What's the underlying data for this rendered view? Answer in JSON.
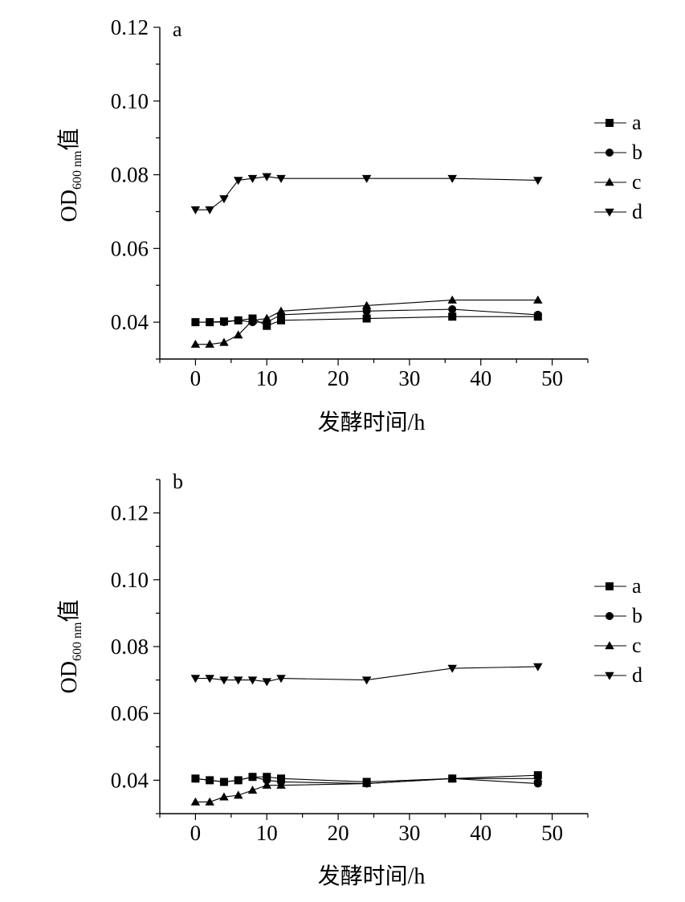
{
  "chart_data": [
    {
      "type": "line",
      "panel_label": "a",
      "xlabel": "发酵时间/h",
      "ylabel_main": "OD",
      "ylabel_sub": "600 nm",
      "ylabel_suffix": "值",
      "xlim": [
        -5,
        55
      ],
      "ylim": [
        0.03,
        0.12
      ],
      "xticks": [
        0,
        10,
        20,
        30,
        40,
        50
      ],
      "yticks": [
        0.04,
        0.06,
        0.08,
        0.1,
        0.12
      ],
      "ytick_labels": [
        "0.04",
        "0.06",
        "0.08",
        "0.10",
        "0.12"
      ],
      "legend_position": "right",
      "series": [
        {
          "name": "a",
          "marker": "square",
          "x": [
            0,
            2,
            4,
            6,
            8,
            10,
            12,
            24,
            36,
            48
          ],
          "y": [
            0.04,
            0.04,
            0.0402,
            0.0405,
            0.041,
            0.039,
            0.0405,
            0.041,
            0.0415,
            0.0415
          ]
        },
        {
          "name": "b",
          "marker": "circle",
          "x": [
            0,
            2,
            4,
            6,
            8,
            10,
            12,
            24,
            36,
            48
          ],
          "y": [
            0.04,
            0.04,
            0.04,
            0.0405,
            0.04,
            0.04,
            0.042,
            0.043,
            0.0435,
            0.042
          ]
        },
        {
          "name": "c",
          "marker": "triangle-up",
          "x": [
            0,
            2,
            4,
            6,
            8,
            10,
            12,
            24,
            36,
            48
          ],
          "y": [
            0.034,
            0.034,
            0.0345,
            0.0365,
            0.0405,
            0.041,
            0.043,
            0.0445,
            0.046,
            0.046
          ]
        },
        {
          "name": "d",
          "marker": "triangle-down",
          "x": [
            0,
            2,
            4,
            6,
            8,
            10,
            12,
            24,
            36,
            48
          ],
          "y": [
            0.0705,
            0.0705,
            0.0735,
            0.0785,
            0.079,
            0.0795,
            0.079,
            0.079,
            0.079,
            0.0785
          ]
        }
      ]
    },
    {
      "type": "line",
      "panel_label": "b",
      "xlabel": "发酵时间/h",
      "ylabel_main": "OD",
      "ylabel_sub": "600 nm",
      "ylabel_suffix": "值",
      "xlim": [
        -5,
        55
      ],
      "ylim": [
        0.03,
        0.13
      ],
      "xticks": [
        0,
        10,
        20,
        30,
        40,
        50
      ],
      "yticks": [
        0.04,
        0.06,
        0.08,
        0.1,
        0.12
      ],
      "ytick_labels": [
        "0.04",
        "0.06",
        "0.08",
        "0.10",
        "0.12"
      ],
      "legend_position": "right",
      "series": [
        {
          "name": "a",
          "marker": "square",
          "x": [
            0,
            2,
            4,
            6,
            8,
            10,
            12,
            24,
            36,
            48
          ],
          "y": [
            0.0405,
            0.04,
            0.0395,
            0.04,
            0.041,
            0.041,
            0.0405,
            0.0395,
            0.0405,
            0.0415
          ]
        },
        {
          "name": "b",
          "marker": "circle",
          "x": [
            0,
            2,
            4,
            6,
            8,
            10,
            12,
            24,
            36,
            48
          ],
          "y": [
            0.0405,
            0.04,
            0.0395,
            0.04,
            0.041,
            0.04,
            0.0395,
            0.039,
            0.0405,
            0.039
          ]
        },
        {
          "name": "c",
          "marker": "triangle-up",
          "x": [
            0,
            2,
            4,
            6,
            8,
            10,
            12,
            24,
            36,
            48
          ],
          "y": [
            0.0335,
            0.0335,
            0.035,
            0.0355,
            0.037,
            0.0385,
            0.0385,
            0.039,
            0.0405,
            0.0405
          ]
        },
        {
          "name": "d",
          "marker": "triangle-down",
          "x": [
            0,
            2,
            4,
            6,
            8,
            10,
            12,
            24,
            36,
            48
          ],
          "y": [
            0.0705,
            0.0705,
            0.07,
            0.07,
            0.07,
            0.0695,
            0.0705,
            0.07,
            0.0735,
            0.074
          ]
        }
      ]
    }
  ]
}
